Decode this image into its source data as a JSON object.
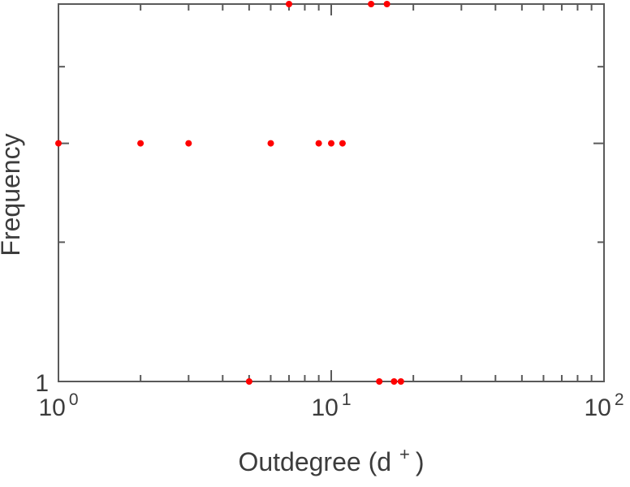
{
  "figure": {
    "background": "#ffffff",
    "frame_color": "#5a5a5a",
    "text_color": "#3c3c3c"
  },
  "chart_data": {
    "type": "scatter",
    "title": "",
    "xlabel": "Outdegree (d+)",
    "xlabel_parts": {
      "pre": "Outdegree (d",
      "sup": "+",
      "post": ")"
    },
    "ylabel": "Frequency",
    "grid": false,
    "legend": null,
    "x_axis": {
      "scale": "log",
      "min": 1,
      "max": 100,
      "major_ticks": [
        1,
        10,
        100
      ],
      "minor_ticks": [
        2,
        3,
        4,
        5,
        6,
        7,
        8,
        9,
        20,
        30,
        40,
        50,
        60,
        70,
        80,
        90
      ],
      "tick_labels": [
        {
          "base": "10",
          "exp": "0"
        },
        {
          "base": "10",
          "exp": "1"
        },
        {
          "base": "10",
          "exp": "2"
        }
      ]
    },
    "y_axis": {
      "scale": "log",
      "min": 1,
      "max": 3,
      "major_ticks": [
        1,
        2,
        3
      ],
      "minor_ticks": [
        1.5,
        2.5
      ],
      "tick_label": "1",
      "tick_label_value": 1
    },
    "marker": {
      "shape": "circle",
      "color": "#ff0000",
      "radius": 4
    },
    "points": [
      {
        "x": 7,
        "y": 3
      },
      {
        "x": 14,
        "y": 3
      },
      {
        "x": 16,
        "y": 3
      },
      {
        "x": 1,
        "y": 2
      },
      {
        "x": 2,
        "y": 2
      },
      {
        "x": 3,
        "y": 2
      },
      {
        "x": 6,
        "y": 2
      },
      {
        "x": 9,
        "y": 2
      },
      {
        "x": 10,
        "y": 2
      },
      {
        "x": 11,
        "y": 2
      },
      {
        "x": 5,
        "y": 1
      },
      {
        "x": 15,
        "y": 1
      },
      {
        "x": 17,
        "y": 1
      },
      {
        "x": 18,
        "y": 1
      }
    ]
  }
}
